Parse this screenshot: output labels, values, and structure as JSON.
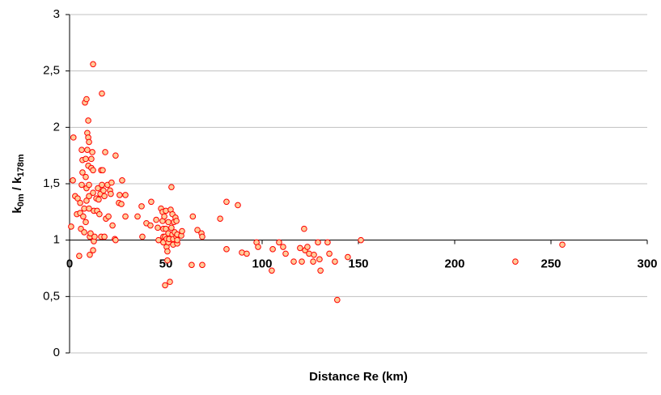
{
  "chart_data": {
    "type": "scatter",
    "x_label": "Distance Re (km)",
    "y_label": [
      "k",
      "0m",
      " / k",
      "178m"
    ],
    "xlim": [
      0,
      300
    ],
    "xticks": [
      0,
      50,
      100,
      150,
      200,
      250,
      300
    ],
    "ylim": [
      0,
      3
    ],
    "yticks": [
      0,
      {
        "value": 0.5,
        "label": "0,5"
      },
      1,
      {
        "value": 1.5,
        "label": "1,5"
      },
      2,
      {
        "value": 2.5,
        "label": "2,5"
      },
      3
    ],
    "x_axis_crosses": 1,
    "grid": true,
    "series": [
      {
        "color": "#ff0000",
        "marker_fill": "#ffcc99",
        "x": [
          0.8,
          2,
          1.7,
          2.9,
          4.2,
          3.8,
          5.5,
          5.5,
          5,
          5.9,
          6.3,
          6.3,
          6.7,
          6.7,
          7.6,
          7.1,
          7.6,
          8,
          8.8,
          8.4,
          8.4,
          8.8,
          8.8,
          8.4,
          9.2,
          9.2,
          9.7,
          9.7,
          10.1,
          9.7,
          10.1,
          10.1,
          10.1,
          10.5,
          10.5,
          10.9,
          11.3,
          11.3,
          11.8,
          12.2,
          12.2,
          12.2,
          12.6,
          12.6,
          12.2,
          13,
          13.9,
          14.3,
          14.7,
          15.1,
          15.5,
          16,
          16.4,
          16.4,
          16.8,
          16.8,
          17.2,
          17.6,
          18.1,
          18.1,
          18.5,
          18.9,
          19.7,
          20.2,
          21,
          21.4,
          21.8,
          22.3,
          23.5,
          23.9,
          23.9,
          25.6,
          26,
          26.9,
          27.3,
          29,
          29,
          35.3,
          37.4,
          37.8,
          39.9,
          42,
          42.4,
          45,
          45.8,
          46.2,
          47.5,
          48.3,
          48.3,
          48.7,
          48.7,
          48.7,
          49.2,
          49.6,
          49.6,
          50,
          50,
          50.4,
          50.4,
          50.8,
          50.8,
          51.3,
          51.3,
          51.3,
          51.7,
          52.1,
          52.5,
          52.9,
          52.9,
          53.4,
          53.4,
          53.8,
          53.8,
          54.2,
          54.6,
          55,
          55.5,
          55.5,
          55.9,
          55.9,
          55.9,
          58,
          58.4,
          63.4,
          64,
          66.4,
          68.5,
          68.9,
          68.9,
          78.2,
          81.5,
          81.5,
          87.4,
          89.5,
          92,
          97.1,
          97.9,
          105,
          105.5,
          108.8,
          110.9,
          112.2,
          116.4,
          119.7,
          120.6,
          121.8,
          122.3,
          123.5,
          124.4,
          126.5,
          126.9,
          129,
          129.8,
          130.3,
          134,
          134.9,
          137.8,
          139,
          144.5,
          151.3,
          231.5,
          255.9
        ],
        "values": [
          1.12,
          1.91,
          1.53,
          1.39,
          1.37,
          1.23,
          1.33,
          1.24,
          0.86,
          1.1,
          1.8,
          1.49,
          1.71,
          1.6,
          1.28,
          1.21,
          1.07,
          2.22,
          2.25,
          1.72,
          1.56,
          1.46,
          1.35,
          1.16,
          1.95,
          1.8,
          2.06,
          1.91,
          1.87,
          1.66,
          1.49,
          1.39,
          1.28,
          1.03,
          0.87,
          1.06,
          1.72,
          1.64,
          1.78,
          2.56,
          1.62,
          1.42,
          1.26,
          0.99,
          0.91,
          1.03,
          1.37,
          1.26,
          1.46,
          1.36,
          1.23,
          1.41,
          1.03,
          1.62,
          2.3,
          1.49,
          1.62,
          1.44,
          1.39,
          1.03,
          1.78,
          1.19,
          1.49,
          1.21,
          1.44,
          1.41,
          1.51,
          1.13,
          1.01,
          1.75,
          1,
          1.33,
          1.4,
          1.32,
          1.53,
          1.21,
          1.4,
          1.21,
          1.3,
          1.03,
          1.15,
          1.13,
          1.34,
          1.18,
          1.11,
          1,
          1.28,
          1.25,
          1.17,
          1.03,
          0.98,
          1.1,
          1.21,
          1.03,
          0.6,
          1.26,
          1.1,
          0.94,
          1.01,
          0.9,
          0.82,
          1.06,
          0.98,
          1.16,
          1.01,
          0.63,
          1.27,
          1.47,
          1.11,
          1.23,
          1.05,
          0.96,
          1.01,
          1.16,
          1.07,
          1.2,
          1.17,
          1.03,
          0.97,
          1,
          1.05,
          1.04,
          1.08,
          0.78,
          1.21,
          1.09,
          1.06,
          1.03,
          0.78,
          1.19,
          0.92,
          1.34,
          1.31,
          0.89,
          0.88,
          0.98,
          0.94,
          0.73,
          0.92,
          0.98,
          0.94,
          0.88,
          0.81,
          0.93,
          0.81,
          1.1,
          0.91,
          0.94,
          0.88,
          0.81,
          0.87,
          0.98,
          0.83,
          0.73,
          0.98,
          0.88,
          0.81,
          0.47,
          0.85,
          1,
          0.81,
          0.96
        ]
      }
    ]
  }
}
